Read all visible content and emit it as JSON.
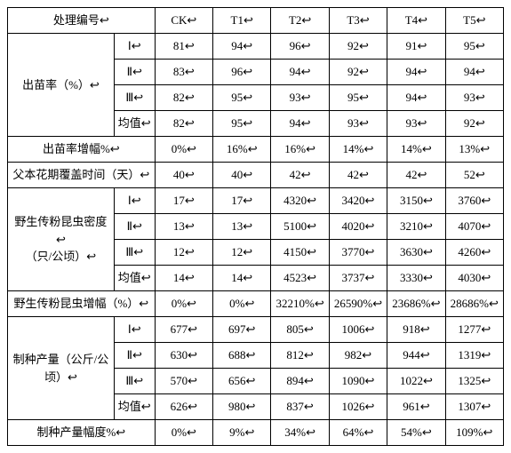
{
  "header": {
    "c0": "处理编号↩",
    "d": [
      "CK↩",
      "T1↩",
      "T2↩",
      "T3↩",
      "T4↩",
      "T5↩"
    ]
  },
  "sections": [
    {
      "label": "出苗率（%）↩",
      "rows": [
        {
          "sub": "Ⅰ↩",
          "d": [
            "81↩",
            "94↩",
            "96↩",
            "92↩",
            "91↩",
            "95↩"
          ]
        },
        {
          "sub": "Ⅱ↩",
          "d": [
            "83↩",
            "96↩",
            "94↩",
            "92↩",
            "94↩",
            "94↩"
          ]
        },
        {
          "sub": "Ⅲ↩",
          "d": [
            "82↩",
            "95↩",
            "93↩",
            "95↩",
            "94↩",
            "93↩"
          ]
        },
        {
          "sub": "均值↩",
          "d": [
            "82↩",
            "95↩",
            "94↩",
            "93↩",
            "93↩",
            "92↩"
          ]
        }
      ]
    }
  ],
  "single_rows": [
    {
      "label": "出苗率增幅%↩",
      "d": [
        "0%↩",
        "16%↩",
        "16%↩",
        "14%↩",
        "14%↩",
        "13%↩"
      ]
    },
    {
      "label": "父本花期覆盖时间（天）↩",
      "d": [
        "40↩",
        "40↩",
        "42↩",
        "42↩",
        "42↩",
        "52↩"
      ]
    }
  ],
  "sections2": [
    {
      "label": "野生传粉昆虫密度↩\n（只/公顷）↩",
      "rows": [
        {
          "sub": "Ⅰ↩",
          "d": [
            "17↩",
            "17↩",
            "4320↩",
            "3420↩",
            "3150↩",
            "3760↩"
          ]
        },
        {
          "sub": "Ⅱ↩",
          "d": [
            "13↩",
            "13↩",
            "5100↩",
            "4020↩",
            "3210↩",
            "4070↩"
          ]
        },
        {
          "sub": "Ⅲ↩",
          "d": [
            "12↩",
            "12↩",
            "4150↩",
            "3770↩",
            "3630↩",
            "4260↩"
          ]
        },
        {
          "sub": "均值↩",
          "d": [
            "14↩",
            "14↩",
            "4523↩",
            "3737↩",
            "3330↩",
            "4030↩"
          ]
        }
      ]
    }
  ],
  "single_rows2": [
    {
      "label": "野生传粉昆虫增幅（%）↩",
      "d": [
        "0%↩",
        "0%↩",
        "32210%↩",
        "26590%↩",
        "23686%↩",
        "28686%↩"
      ]
    }
  ],
  "sections3": [
    {
      "label": "制种产量（公斤/公\n顷）↩",
      "rows": [
        {
          "sub": "Ⅰ↩",
          "d": [
            "677↩",
            "697↩",
            "805↩",
            "1006↩",
            "918↩",
            "1277↩"
          ]
        },
        {
          "sub": "Ⅱ↩",
          "d": [
            "630↩",
            "688↩",
            "812↩",
            "982↩",
            "944↩",
            "1319↩"
          ]
        },
        {
          "sub": "Ⅲ↩",
          "d": [
            "570↩",
            "656↩",
            "894↩",
            "1090↩",
            "1022↩",
            "1325↩"
          ]
        },
        {
          "sub": "均值↩",
          "d": [
            "626↩",
            "980↩",
            "837↩",
            "1026↩",
            "961↩",
            "1307↩"
          ]
        }
      ]
    }
  ],
  "single_rows3": [
    {
      "label": "制种产量幅度%↩",
      "d": [
        "0%↩",
        "9%↩",
        "34%↩",
        "64%↩",
        "54%↩",
        "109%↩"
      ]
    }
  ]
}
